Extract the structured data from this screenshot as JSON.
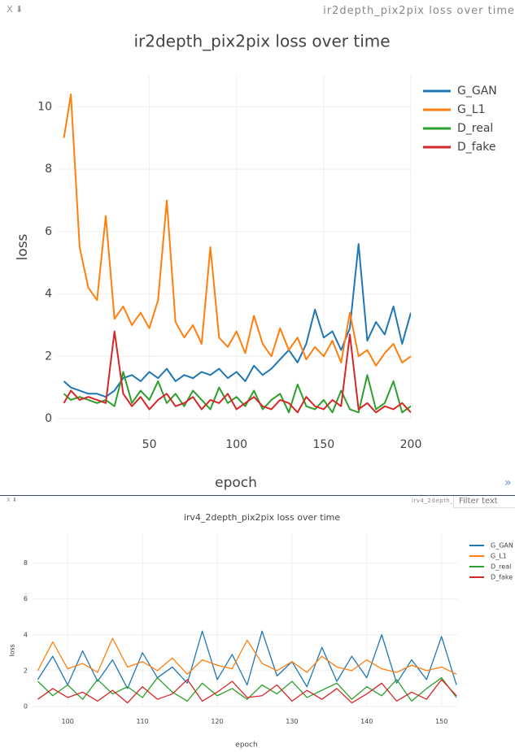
{
  "panes": [
    {
      "close": "X",
      "download": "⬇",
      "header": "ir2depth_pix2pix loss over time",
      "expand": "»"
    },
    {
      "close": "X",
      "download": "⬇",
      "header": "irv4_2depth_pix2pix loss over time",
      "filter_placeholder": "Filter text"
    }
  ],
  "chart_data": [
    {
      "type": "line",
      "title": "ir2depth_pix2pix loss over time",
      "x_label": "epoch",
      "y_label": "loss",
      "x": [
        1,
        5,
        10,
        15,
        20,
        25,
        30,
        35,
        40,
        45,
        50,
        55,
        60,
        65,
        70,
        75,
        80,
        85,
        90,
        95,
        100,
        105,
        110,
        115,
        120,
        125,
        130,
        135,
        140,
        145,
        150,
        155,
        160,
        165,
        170,
        175,
        180,
        185,
        190,
        195,
        200
      ],
      "xlim": [
        -3,
        200
      ],
      "xticks": [
        50,
        100,
        150,
        200
      ],
      "ylim": [
        0,
        11
      ],
      "yticks": [
        0,
        2,
        4,
        6,
        8,
        10
      ],
      "grid": true,
      "legend": "right",
      "series": [
        {
          "name": "G_GAN",
          "color": "#1f77b4",
          "values": [
            1.2,
            1.0,
            0.9,
            0.8,
            0.8,
            0.7,
            0.9,
            1.3,
            1.4,
            1.2,
            1.5,
            1.3,
            1.6,
            1.2,
            1.4,
            1.3,
            1.5,
            1.4,
            1.6,
            1.3,
            1.5,
            1.2,
            1.7,
            1.4,
            1.6,
            1.9,
            2.2,
            1.8,
            2.4,
            3.5,
            2.6,
            2.8,
            2.2,
            2.9,
            5.6,
            2.5,
            3.1,
            2.7,
            3.6,
            2.4,
            3.4
          ]
        },
        {
          "name": "G_L1",
          "color": "#ff7f0e",
          "values": [
            9.0,
            10.4,
            5.5,
            4.2,
            3.8,
            6.5,
            3.2,
            3.6,
            3.0,
            3.4,
            2.9,
            3.8,
            7.0,
            3.1,
            2.6,
            3.0,
            2.4,
            5.5,
            2.6,
            2.3,
            2.8,
            2.1,
            3.3,
            2.4,
            2.0,
            2.9,
            2.2,
            2.6,
            1.9,
            2.3,
            2.0,
            2.5,
            1.8,
            3.4,
            2.0,
            2.2,
            1.7,
            2.1,
            2.4,
            1.8,
            2.0
          ]
        },
        {
          "name": "D_real",
          "color": "#2ca02c",
          "values": [
            0.8,
            0.6,
            0.7,
            0.6,
            0.5,
            0.6,
            0.4,
            1.5,
            0.5,
            0.9,
            0.6,
            1.2,
            0.5,
            0.8,
            0.4,
            0.9,
            0.6,
            0.3,
            1.0,
            0.5,
            0.7,
            0.4,
            0.9,
            0.3,
            0.6,
            0.8,
            0.2,
            1.1,
            0.4,
            0.3,
            0.6,
            0.2,
            0.9,
            0.3,
            0.2,
            1.4,
            0.3,
            0.5,
            1.2,
            0.2,
            0.4
          ]
        },
        {
          "name": "D_fake",
          "color": "#d62728",
          "values": [
            0.5,
            0.9,
            0.6,
            0.7,
            0.6,
            0.5,
            2.8,
            0.8,
            0.4,
            0.7,
            0.3,
            0.6,
            0.8,
            0.4,
            0.5,
            0.7,
            0.3,
            0.6,
            0.5,
            0.8,
            0.3,
            0.5,
            0.7,
            0.4,
            0.3,
            0.6,
            0.5,
            0.2,
            0.7,
            0.4,
            0.3,
            0.6,
            0.4,
            2.7,
            0.3,
            0.5,
            0.2,
            0.4,
            0.3,
            0.5,
            0.2
          ]
        }
      ]
    },
    {
      "type": "line",
      "title": "irv4_2depth_pix2pix loss over time",
      "x_label": "epoch",
      "y_label": "loss",
      "x": [
        96,
        98,
        100,
        102,
        104,
        106,
        108,
        110,
        112,
        114,
        116,
        118,
        120,
        122,
        124,
        126,
        128,
        130,
        132,
        134,
        136,
        138,
        140,
        142,
        144,
        146,
        148,
        150,
        152
      ],
      "xlim": [
        95.3,
        152.1
      ],
      "xticks": [
        100,
        110,
        120,
        130,
        140,
        150
      ],
      "ylim": [
        0,
        9.7
      ],
      "yticks": [
        0,
        2,
        4,
        6,
        8
      ],
      "grid": true,
      "legend": "right",
      "series": [
        {
          "name": "G_GAN",
          "color": "#1f77b4",
          "values": [
            1.5,
            2.8,
            1.2,
            3.1,
            1.4,
            2.6,
            1.0,
            3.0,
            1.6,
            2.2,
            1.3,
            4.2,
            1.5,
            2.9,
            1.2,
            4.2,
            1.7,
            2.5,
            1.1,
            3.3,
            1.4,
            2.8,
            1.6,
            4.0,
            1.3,
            2.6,
            1.5,
            3.9,
            1.2
          ]
        },
        {
          "name": "G_L1",
          "color": "#ff7f0e",
          "values": [
            2.0,
            3.6,
            2.1,
            2.4,
            1.9,
            3.8,
            2.2,
            2.5,
            2.0,
            2.7,
            1.8,
            2.6,
            2.3,
            2.1,
            3.7,
            2.4,
            2.0,
            2.5,
            1.9,
            2.8,
            2.2,
            2.0,
            2.6,
            2.1,
            1.9,
            2.3,
            2.0,
            2.2,
            1.8
          ]
        },
        {
          "name": "D_real",
          "color": "#2ca02c",
          "values": [
            1.4,
            0.6,
            1.2,
            0.4,
            1.5,
            0.7,
            1.1,
            0.5,
            1.6,
            0.8,
            0.3,
            1.3,
            0.6,
            1.0,
            0.4,
            1.2,
            0.7,
            1.4,
            0.5,
            0.9,
            1.3,
            0.4,
            1.1,
            0.6,
            1.5,
            0.3,
            1.0,
            1.6,
            0.5
          ]
        },
        {
          "name": "D_fake",
          "color": "#d62728",
          "values": [
            0.4,
            1.0,
            0.5,
            0.8,
            0.3,
            0.9,
            0.2,
            1.1,
            0.4,
            0.7,
            1.5,
            0.3,
            0.8,
            1.4,
            0.5,
            0.6,
            1.2,
            0.3,
            0.9,
            0.4,
            1.0,
            0.2,
            0.7,
            1.3,
            0.3,
            0.8,
            0.4,
            1.5,
            0.6
          ]
        }
      ]
    }
  ]
}
